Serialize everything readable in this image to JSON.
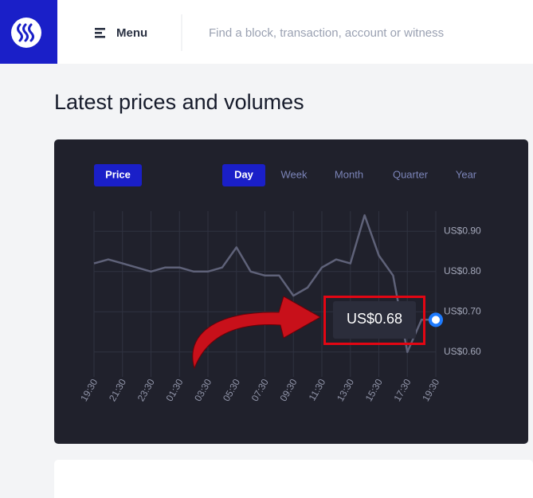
{
  "header": {
    "menu": "Menu",
    "search_placeholder": "Find a block, transaction, account or witness"
  },
  "heading": "Latest prices and volumes",
  "chart_data": {
    "type": "line",
    "metric_button": "Price",
    "range_tabs": [
      "Day",
      "Week",
      "Month",
      "Quarter",
      "Year"
    ],
    "selected_range_index": 0,
    "categories": [
      "19:30",
      null,
      "21:30",
      null,
      "23:30",
      null,
      "01:30",
      null,
      "03:30",
      null,
      "05:30",
      null,
      "07:30",
      null,
      "09:30",
      null,
      "11:30",
      null,
      "13:30",
      null,
      "15:30",
      null,
      "17:30",
      null,
      "19:30"
    ],
    "values": [
      0.82,
      0.83,
      0.82,
      0.81,
      0.8,
      0.81,
      0.81,
      0.8,
      0.8,
      0.81,
      0.86,
      0.8,
      0.79,
      0.79,
      0.74,
      0.76,
      0.81,
      0.83,
      0.82,
      0.94,
      0.84,
      0.79,
      0.6,
      0.68,
      0.68
    ],
    "color": "#5f6279",
    "ylim": [
      0.55,
      0.95
    ],
    "yticks": [
      {
        "value": 0.6,
        "label": "US$0.60"
      },
      {
        "value": 0.7,
        "label": "US$0.70"
      },
      {
        "value": 0.8,
        "label": "US$0.80"
      },
      {
        "value": 0.9,
        "label": "US$0.90"
      }
    ],
    "grid": true,
    "tooltip": "US$0.68"
  }
}
